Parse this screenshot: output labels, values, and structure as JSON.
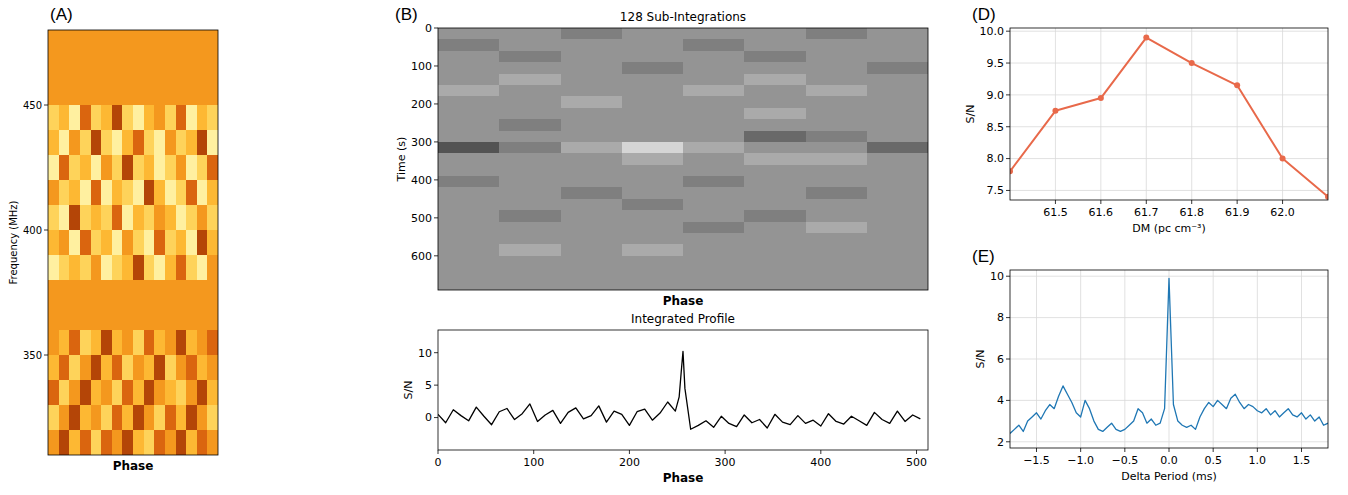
{
  "chart_data": [
    {
      "type": "heatmap",
      "panel": "(A)",
      "x_label": "Phase",
      "y_label": "Frequency (MHz)",
      "ylim": [
        310,
        480
      ],
      "yticks": [
        350,
        400,
        450
      ],
      "tick_labels": "y",
      "color": "afmhot",
      "zlim": [
        0,
        9
      ],
      "y_edges": [
        480,
        470,
        460,
        450,
        440,
        430,
        420,
        410,
        400,
        390,
        380,
        370,
        360,
        350,
        340,
        330,
        320,
        310
      ],
      "cells": [
        [
          6,
          6,
          6,
          6,
          6,
          6,
          6,
          6,
          6,
          6,
          6,
          6,
          6,
          6,
          6,
          6
        ],
        [
          6,
          6,
          6,
          6,
          6,
          6,
          6,
          6,
          6,
          6,
          6,
          6,
          6,
          6,
          6,
          6
        ],
        [
          6,
          6,
          6,
          6,
          6,
          6,
          6,
          6,
          6,
          6,
          6,
          6,
          6,
          6,
          6,
          6
        ],
        [
          8,
          7,
          9,
          5,
          8,
          7,
          4,
          8,
          9,
          7,
          6,
          8,
          5,
          9,
          7,
          8
        ],
        [
          7,
          9,
          6,
          8,
          4,
          8,
          9,
          7,
          5,
          8,
          9,
          6,
          8,
          7,
          4,
          9
        ],
        [
          9,
          5,
          8,
          7,
          9,
          6,
          8,
          4,
          8,
          7,
          9,
          8,
          6,
          9,
          8,
          5
        ],
        [
          6,
          8,
          7,
          9,
          5,
          9,
          7,
          8,
          9,
          4,
          7,
          9,
          8,
          5,
          9,
          7
        ],
        [
          8,
          9,
          4,
          8,
          7,
          8,
          5,
          9,
          7,
          8,
          6,
          7,
          9,
          8,
          6,
          8
        ],
        [
          7,
          6,
          9,
          5,
          8,
          7,
          9,
          6,
          8,
          9,
          5,
          8,
          7,
          9,
          4,
          7
        ],
        [
          9,
          8,
          7,
          8,
          6,
          9,
          8,
          7,
          4,
          8,
          9,
          7,
          5,
          8,
          9,
          6
        ],
        [
          6,
          6,
          6,
          6,
          6,
          6,
          6,
          6,
          6,
          6,
          6,
          6,
          6,
          6,
          6,
          6
        ],
        [
          6,
          6,
          6,
          6,
          6,
          6,
          6,
          6,
          6,
          6,
          6,
          6,
          6,
          6,
          6,
          6
        ],
        [
          6,
          7,
          5,
          8,
          7,
          4,
          7,
          6,
          8,
          5,
          7,
          6,
          4,
          7,
          6,
          5
        ],
        [
          7,
          5,
          8,
          6,
          4,
          7,
          5,
          8,
          6,
          7,
          4,
          8,
          6,
          5,
          7,
          6
        ],
        [
          5,
          8,
          6,
          4,
          7,
          6,
          8,
          5,
          7,
          4,
          6,
          7,
          8,
          6,
          4,
          7
        ],
        [
          8,
          6,
          4,
          7,
          6,
          8,
          5,
          7,
          4,
          6,
          8,
          5,
          7,
          4,
          6,
          8
        ],
        [
          6,
          4,
          7,
          5,
          8,
          5,
          6,
          4,
          7,
          8,
          5,
          6,
          4,
          7,
          5,
          6
        ]
      ]
    },
    {
      "type": "heatmap",
      "panel": "(B)",
      "title": "128 Sub-Integrations",
      "x_label": "Phase",
      "y_label": "Time (s)",
      "ylim": [
        690,
        0
      ],
      "yticks": [
        0,
        100,
        200,
        300,
        400,
        500,
        600
      ],
      "tick_labels": "y",
      "color": "gray",
      "zlim": [
        0,
        9
      ],
      "y_edges": [
        0,
        30,
        60,
        90,
        120,
        150,
        180,
        210,
        240,
        270,
        300,
        330,
        360,
        390,
        420,
        450,
        480,
        510,
        540,
        570,
        600,
        630,
        660,
        690
      ],
      "cells": [
        [
          5,
          5,
          4,
          5,
          5,
          5,
          4,
          5
        ],
        [
          4,
          5,
          5,
          5,
          4,
          5,
          5,
          5
        ],
        [
          5,
          4,
          5,
          5,
          5,
          4,
          5,
          5
        ],
        [
          5,
          5,
          5,
          4,
          5,
          5,
          5,
          4
        ],
        [
          5,
          6,
          5,
          5,
          5,
          6,
          5,
          5
        ],
        [
          6,
          5,
          5,
          5,
          6,
          5,
          6,
          5
        ],
        [
          5,
          5,
          6,
          5,
          5,
          5,
          5,
          5
        ],
        [
          5,
          5,
          5,
          5,
          5,
          6,
          5,
          5
        ],
        [
          5,
          4,
          5,
          5,
          5,
          5,
          5,
          5
        ],
        [
          5,
          5,
          5,
          5,
          5,
          3,
          4,
          5
        ],
        [
          2,
          4,
          6,
          8,
          6,
          5,
          5,
          3
        ],
        [
          5,
          5,
          5,
          6,
          5,
          6,
          6,
          5
        ],
        [
          5,
          5,
          5,
          5,
          5,
          5,
          5,
          5
        ],
        [
          4,
          5,
          5,
          5,
          4,
          5,
          5,
          5
        ],
        [
          5,
          5,
          4,
          5,
          5,
          5,
          4,
          5
        ],
        [
          5,
          5,
          5,
          4,
          5,
          5,
          5,
          5
        ],
        [
          5,
          4,
          5,
          5,
          5,
          4,
          5,
          5
        ],
        [
          5,
          5,
          5,
          5,
          4,
          5,
          6,
          5
        ],
        [
          5,
          5,
          5,
          5,
          5,
          5,
          5,
          5
        ],
        [
          5,
          6,
          5,
          6,
          5,
          5,
          5,
          5
        ],
        [
          5,
          5,
          5,
          5,
          5,
          5,
          5,
          5
        ],
        [
          5,
          5,
          5,
          5,
          5,
          5,
          5,
          5
        ],
        [
          5,
          5,
          5,
          5,
          5,
          5,
          5,
          5
        ]
      ]
    },
    {
      "type": "line",
      "title": "Integrated Profile",
      "x_label": "Phase",
      "y_label": "S/N",
      "color": "#000000",
      "xlim": [
        0,
        512
      ],
      "xticks": [
        0,
        100,
        200,
        300,
        400,
        500
      ],
      "ylim": [
        -5,
        13.5
      ],
      "yticks": [
        0,
        5,
        10
      ],
      "x": [
        0,
        8,
        16,
        24,
        32,
        40,
        48,
        56,
        64,
        72,
        80,
        88,
        96,
        104,
        112,
        120,
        128,
        136,
        144,
        152,
        160,
        168,
        176,
        184,
        192,
        200,
        208,
        216,
        224,
        232,
        240,
        248,
        252,
        254,
        256,
        258,
        264,
        272,
        280,
        288,
        296,
        304,
        312,
        320,
        328,
        336,
        344,
        352,
        360,
        368,
        376,
        384,
        392,
        400,
        408,
        416,
        424,
        432,
        440,
        448,
        456,
        464,
        472,
        480,
        488,
        496,
        504
      ],
      "values": [
        0.5,
        -0.8,
        1.2,
        0.3,
        -0.5,
        1.6,
        0.2,
        -1.1,
        0.9,
        1.4,
        -0.3,
        0.6,
        2.1,
        -0.6,
        0.4,
        1.1,
        -0.9,
        0.8,
        1.5,
        -0.2,
        0.3,
        1.8,
        -0.7,
        1.0,
        0.5,
        -1.2,
        0.9,
        1.3,
        -0.4,
        0.7,
        2.4,
        1.0,
        3.2,
        6.8,
        10.2,
        4.5,
        -1.8,
        -1.2,
        -0.5,
        -1.5,
        0.2,
        -0.9,
        -1.4,
        0.4,
        -0.8,
        -0.3,
        -1.6,
        0.5,
        -0.7,
        -1.1,
        0.3,
        -0.9,
        -0.4,
        -1.3,
        0.6,
        -0.6,
        -1.0,
        0.2,
        -0.5,
        -1.2,
        0.8,
        -0.3,
        -0.9,
        1.0,
        -0.6,
        0.4,
        -0.2
      ]
    },
    {
      "type": "line",
      "panel": "(D)",
      "x_label": "DM (pc cm⁻³)",
      "y_label": "S/N",
      "color": "#e8694a",
      "marker": "circle",
      "grid": true,
      "xlim": [
        61.4,
        62.1
      ],
      "xticks": [
        61.5,
        61.6,
        61.7,
        61.8,
        61.9,
        {
          "value": 62,
          "label": "62.0"
        }
      ],
      "ylim": [
        7.35,
        10.05
      ],
      "yticks": [
        7.5,
        {
          "value": 8,
          "label": "8.0"
        },
        8.5,
        {
          "value": 9,
          "label": "9.0"
        },
        9.5,
        {
          "value": 10,
          "label": "10.0"
        }
      ],
      "x": [
        61.4,
        61.5,
        61.6,
        61.7,
        61.8,
        61.9,
        62.0,
        62.1
      ],
      "values": [
        7.8,
        8.75,
        8.95,
        9.9,
        9.5,
        9.15,
        8.0,
        7.4
      ]
    },
    {
      "type": "line",
      "panel": "(E)",
      "x_label": "Delta Period (ms)",
      "y_label": "S/N",
      "color": "#1f77b4",
      "grid": true,
      "xlim": [
        -1.8,
        1.8
      ],
      "xticks": [
        {
          "value": -1.5,
          "label": "−1.5"
        },
        {
          "value": -1,
          "label": "−1.0"
        },
        {
          "value": -0.5,
          "label": "−0.5"
        },
        {
          "value": 0,
          "label": "0.0"
        },
        0.5,
        {
          "value": 1,
          "label": "1.0"
        },
        1.5
      ],
      "ylim": [
        1.7,
        10.3
      ],
      "yticks": [
        2,
        4,
        6,
        8,
        10
      ],
      "x": [
        -1.8,
        -1.75,
        -1.7,
        -1.65,
        -1.6,
        -1.55,
        -1.5,
        -1.45,
        -1.4,
        -1.35,
        -1.3,
        -1.25,
        -1.2,
        -1.15,
        -1.1,
        -1.05,
        -1.0,
        -0.95,
        -0.9,
        -0.85,
        -0.8,
        -0.75,
        -0.7,
        -0.65,
        -0.6,
        -0.55,
        -0.5,
        -0.45,
        -0.4,
        -0.35,
        -0.3,
        -0.25,
        -0.2,
        -0.15,
        -0.1,
        -0.05,
        0.0,
        0.05,
        0.1,
        0.15,
        0.2,
        0.25,
        0.3,
        0.35,
        0.4,
        0.45,
        0.5,
        0.55,
        0.6,
        0.65,
        0.7,
        0.75,
        0.8,
        0.85,
        0.9,
        0.95,
        1.0,
        1.05,
        1.1,
        1.15,
        1.2,
        1.25,
        1.3,
        1.35,
        1.4,
        1.45,
        1.5,
        1.55,
        1.6,
        1.65,
        1.7,
        1.75,
        1.8
      ],
      "values": [
        2.4,
        2.6,
        2.8,
        2.5,
        3.0,
        3.2,
        3.4,
        3.1,
        3.5,
        3.8,
        3.6,
        4.2,
        4.7,
        4.3,
        3.9,
        3.4,
        3.2,
        4.0,
        3.6,
        3.0,
        2.6,
        2.5,
        2.7,
        2.9,
        2.6,
        2.5,
        2.6,
        2.8,
        3.0,
        3.6,
        3.4,
        2.9,
        3.1,
        2.8,
        2.9,
        3.6,
        9.9,
        3.8,
        3.0,
        2.8,
        2.7,
        2.8,
        2.6,
        3.2,
        3.6,
        3.9,
        3.7,
        4.0,
        3.8,
        3.6,
        4.1,
        4.3,
        3.9,
        3.6,
        3.8,
        3.7,
        3.5,
        3.4,
        3.6,
        3.3,
        3.5,
        3.2,
        3.4,
        3.6,
        3.3,
        3.2,
        3.4,
        3.1,
        3.3,
        3.0,
        3.2,
        2.8,
        2.9
      ]
    }
  ]
}
